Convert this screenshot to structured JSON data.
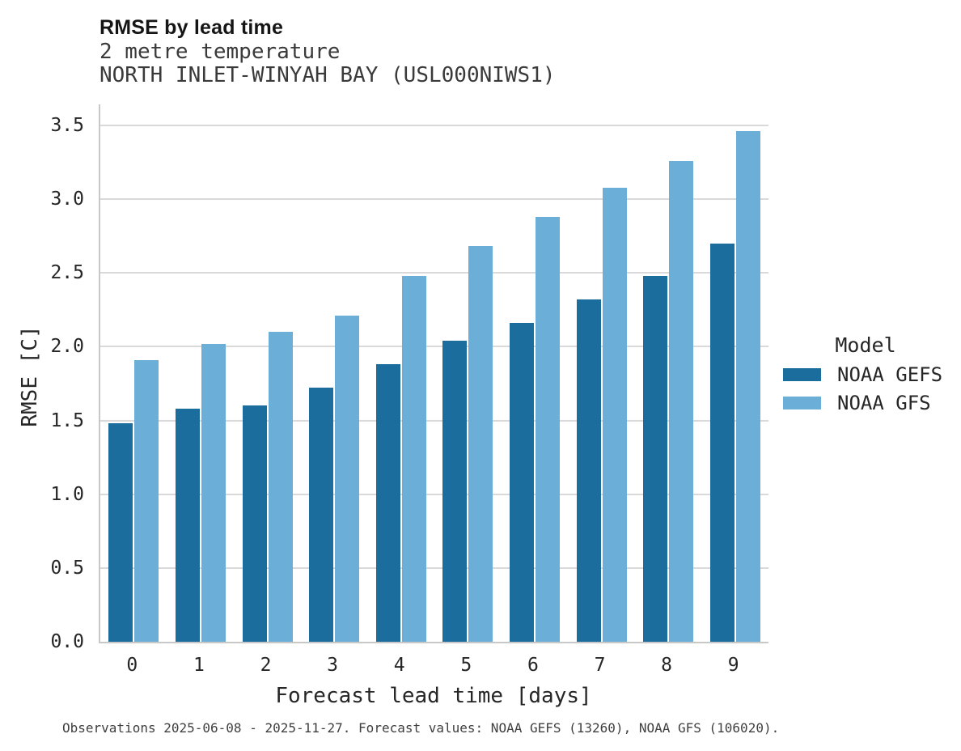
{
  "header": {
    "title": "RMSE by lead time",
    "subtitle_line1": "2 metre temperature",
    "subtitle_line2": "NORTH INLET-WINYAH BAY (USL000NIWS1)"
  },
  "legend": {
    "title": "Model"
  },
  "caption": "Observations 2025-06-08 - 2025-11-27. Forecast values: NOAA GEFS (13260), NOAA GFS (106020).",
  "colors": {
    "gefs_bar": "#1a6d9c",
    "gfs_bar": "#6bafd8",
    "gridline": "#d9d9d9",
    "spine": "#c8c8c8"
  },
  "chart_data": {
    "type": "bar",
    "title": "RMSE by lead time",
    "subtitle": [
      "2 metre temperature",
      "NORTH INLET-WINYAH BAY (USL000NIWS1)"
    ],
    "xlabel": "Forecast lead time [days]",
    "ylabel": "RMSE [C]",
    "categories": [
      "0",
      "1",
      "2",
      "3",
      "4",
      "5",
      "6",
      "7",
      "8",
      "9"
    ],
    "series": [
      {
        "name": "NOAA GEFS",
        "color": "#1a6d9c",
        "values": [
          1.48,
          1.58,
          1.6,
          1.72,
          1.88,
          2.04,
          2.16,
          2.32,
          2.48,
          2.7
        ]
      },
      {
        "name": "NOAA GFS",
        "color": "#6bafd8",
        "values": [
          1.91,
          2.02,
          2.1,
          2.21,
          2.48,
          2.68,
          2.88,
          3.08,
          3.26,
          3.46
        ]
      }
    ],
    "ylim": [
      0,
      3.64
    ],
    "yticks": [
      0.0,
      0.5,
      1.0,
      1.5,
      2.0,
      2.5,
      3.0,
      3.5
    ],
    "grid": true,
    "legend_title": "Model",
    "legend_position": "center-right",
    "caption": "Observations 2025-06-08 - 2025-11-27. Forecast values: NOAA GEFS (13260), NOAA GFS (106020)."
  }
}
